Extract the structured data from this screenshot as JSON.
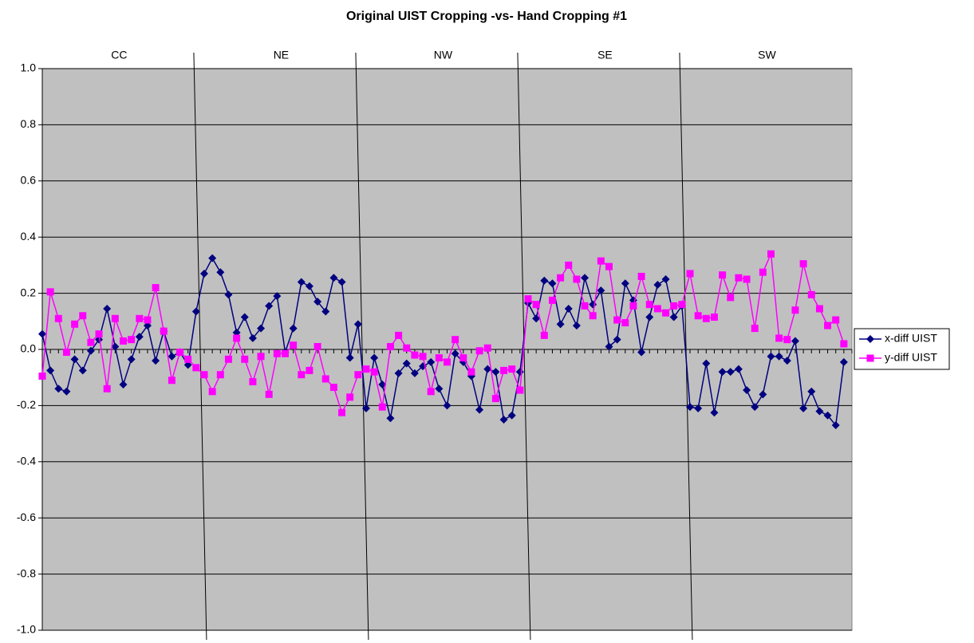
{
  "chart_data": {
    "type": "line",
    "title": "Original UIST Cropping -vs- Hand Cropping #1",
    "groups": [
      "CC",
      "NE",
      "NW",
      "SE",
      "SW"
    ],
    "categories": [
      null,
      null,
      null,
      null,
      null,
      null,
      null,
      null,
      null,
      null,
      null,
      null,
      null,
      null,
      null,
      null,
      null,
      null,
      null,
      null,
      null,
      null,
      null,
      null,
      null,
      null,
      null,
      null,
      null,
      null,
      null,
      null,
      null,
      null,
      null,
      null,
      null,
      null,
      null,
      null,
      null,
      null,
      null,
      null,
      null,
      null,
      null,
      null,
      null,
      null,
      null,
      null,
      null,
      null,
      null,
      null,
      null,
      null,
      null,
      null,
      null,
      null,
      null,
      null,
      null,
      null,
      null,
      null,
      null,
      null,
      null,
      null,
      null,
      null,
      null,
      null,
      null,
      null,
      null,
      null,
      null,
      null,
      null,
      null,
      null,
      null,
      null,
      null,
      null,
      null,
      null,
      null,
      null,
      null,
      null,
      null,
      null,
      null,
      null,
      null
    ],
    "series": [
      {
        "name": "x-diff UIST",
        "color": "#000080",
        "marker": "diamond",
        "values": [
          0.055,
          -0.075,
          -0.14,
          -0.15,
          -0.035,
          -0.075,
          -0.005,
          0.035,
          0.145,
          0.01,
          -0.125,
          -0.035,
          0.045,
          0.085,
          -0.04,
          0.065,
          -0.025,
          -0.01,
          -0.055,
          0.135,
          0.27,
          0.325,
          0.275,
          0.195,
          0.06,
          0.115,
          0.04,
          0.075,
          0.155,
          0.19,
          -0.01,
          0.075,
          0.24,
          0.225,
          0.17,
          0.135,
          0.255,
          0.24,
          -0.03,
          0.09,
          -0.21,
          -0.03,
          -0.125,
          -0.245,
          -0.085,
          -0.05,
          -0.085,
          -0.06,
          -0.045,
          -0.14,
          -0.2,
          -0.015,
          -0.045,
          -0.095,
          -0.215,
          -0.07,
          -0.08,
          -0.25,
          -0.235,
          -0.08,
          0.165,
          0.11,
          0.245,
          0.235,
          0.09,
          0.145,
          0.085,
          0.255,
          0.16,
          0.21,
          0.01,
          0.035,
          0.235,
          0.175,
          -0.01,
          0.115,
          0.23,
          0.25,
          0.115,
          0.155,
          -0.205,
          -0.21,
          -0.05,
          -0.225,
          -0.08,
          -0.08,
          -0.07,
          -0.145,
          -0.205,
          -0.16,
          -0.025,
          -0.025,
          -0.04,
          0.03,
          -0.21,
          -0.15,
          -0.22,
          -0.235,
          -0.27,
          -0.045
        ]
      },
      {
        "name": "y-diff UIST",
        "color": "#FF00FF",
        "marker": "square",
        "values": [
          -0.095,
          0.205,
          0.11,
          -0.01,
          0.09,
          0.12,
          0.025,
          0.055,
          -0.14,
          0.11,
          0.03,
          0.035,
          0.11,
          0.105,
          0.22,
          0.065,
          -0.11,
          -0.01,
          -0.035,
          -0.065,
          -0.09,
          -0.15,
          -0.09,
          -0.035,
          0.04,
          -0.035,
          -0.115,
          -0.025,
          -0.16,
          -0.015,
          -0.015,
          0.015,
          -0.09,
          -0.075,
          0.01,
          -0.105,
          -0.135,
          -0.225,
          -0.17,
          -0.09,
          -0.07,
          -0.08,
          -0.205,
          0.01,
          0.05,
          0.005,
          -0.02,
          -0.025,
          -0.15,
          -0.03,
          -0.045,
          0.035,
          -0.03,
          -0.08,
          -0.005,
          0.005,
          -0.175,
          -0.075,
          -0.07,
          -0.145,
          0.18,
          0.16,
          0.05,
          0.175,
          0.255,
          0.3,
          0.25,
          0.155,
          0.12,
          0.315,
          0.295,
          0.105,
          0.095,
          0.155,
          0.26,
          0.16,
          0.145,
          0.13,
          0.155,
          0.16,
          0.27,
          0.12,
          0.11,
          0.115,
          0.265,
          0.185,
          0.255,
          0.25,
          0.075,
          0.275,
          0.34,
          0.04,
          0.035,
          0.14,
          0.305,
          0.195,
          0.145,
          0.085,
          0.105,
          0.02
        ]
      }
    ],
    "ylim": [
      -1,
      1
    ],
    "yticks": [
      {
        "value": -1,
        "label": "-1.0"
      },
      -0.8,
      -0.6,
      -0.4,
      -0.2,
      {
        "value": 0,
        "label": "0.0"
      },
      0.2,
      0.4,
      0.6,
      0.8,
      {
        "value": 1,
        "label": "1.0"
      }
    ],
    "grid": true,
    "plot_background": "#C0C0C0",
    "legend": "right"
  }
}
